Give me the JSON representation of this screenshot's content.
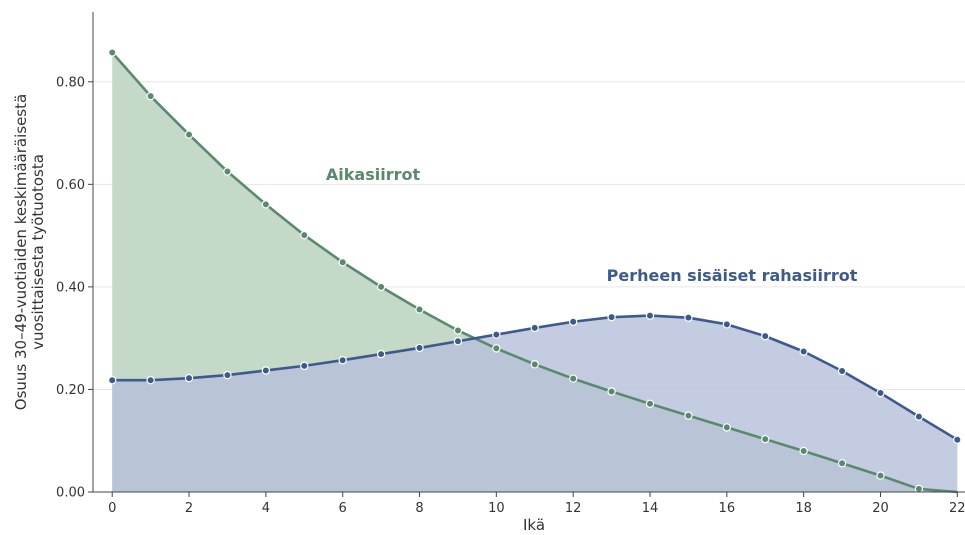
{
  "chart_data": {
    "type": "area",
    "xlabel": "Ikä",
    "ylabel_lines": [
      "Osuus 30–49-vuotiaiden keskimääräisestä",
      "vuosittaisesta työtuotosta"
    ],
    "xlim": [
      -0.5,
      22.2
    ],
    "ylim": [
      0,
      0.94
    ],
    "x_ticks": [
      0,
      2,
      4,
      6,
      8,
      10,
      12,
      14,
      16,
      18,
      20,
      22
    ],
    "y_ticks": [
      0.0,
      0.2,
      0.4,
      0.6,
      0.8
    ],
    "y_tick_labels": [
      "0.00",
      "0.20",
      "0.40",
      "0.60",
      "0.80"
    ],
    "grid": "horizontal",
    "x": [
      0,
      1,
      2,
      3,
      4,
      5,
      6,
      7,
      8,
      9,
      10,
      11,
      12,
      13,
      14,
      15,
      16,
      17,
      18,
      19,
      20,
      21,
      22
    ],
    "series": [
      {
        "name": "Aikasiirrot",
        "color": "#5a8a6e",
        "fill": "#c5d9c9",
        "values": [
          0.857,
          0.772,
          0.697,
          0.625,
          0.561,
          0.501,
          0.448,
          0.4,
          0.356,
          0.315,
          0.28,
          0.249,
          0.221,
          0.196,
          0.172,
          0.149,
          0.126,
          0.103,
          0.08,
          0.056,
          0.032,
          0.006,
          -0.02
        ]
      },
      {
        "name": "Perheen sisäiset rahasiirrot",
        "color": "#3d5a8c",
        "fill": "#b6c1db",
        "values": [
          0.218,
          0.218,
          0.222,
          0.228,
          0.237,
          0.246,
          0.257,
          0.269,
          0.281,
          0.294,
          0.307,
          0.32,
          0.332,
          0.341,
          0.344,
          0.34,
          0.327,
          0.304,
          0.274,
          0.236,
          0.193,
          0.147,
          0.102
        ]
      }
    ],
    "labels": [
      {
        "text": "Aikasiirrot",
        "series": 0
      },
      {
        "text": "Perheen sisäiset rahasiirrot",
        "series": 1
      }
    ]
  }
}
